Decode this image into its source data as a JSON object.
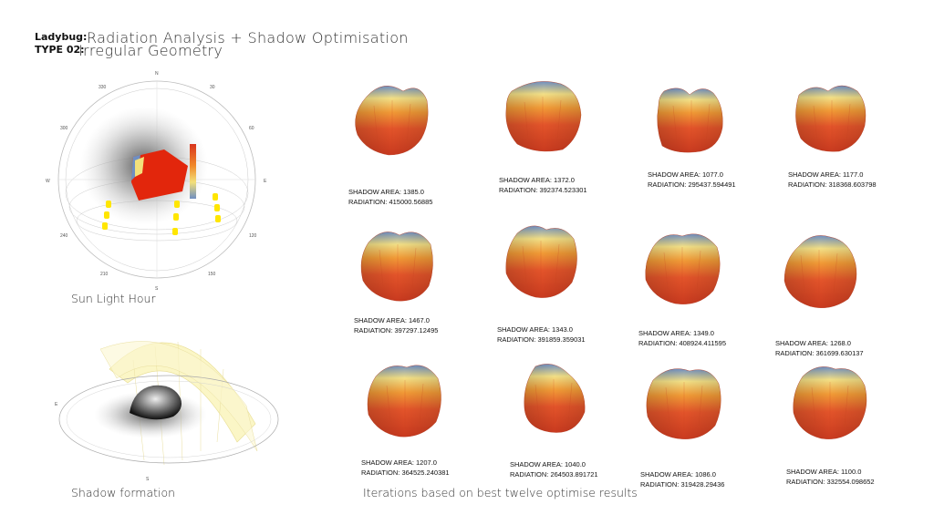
{
  "header": {
    "tool": "Ladybug:",
    "title": "Radiation Analysis + Shadow Optimisation",
    "type_label": "TYPE 02:",
    "subtitle": "Irregular Geometry"
  },
  "sun_panel": {
    "caption": "Sun Light Hour",
    "compass": {
      "n": "N",
      "s": "S",
      "e": "E",
      "w": "W"
    },
    "degree_labels": [
      "330",
      "30",
      "300",
      "60",
      "240",
      "120",
      "210",
      "150"
    ]
  },
  "shadow_panel": {
    "caption": "Shadow formation"
  },
  "iterations_caption": "Iterations based on best twelve optimise results",
  "shadow_label": "SHADOW AREA:",
  "radiation_label": "RADIATION:",
  "iterations": [
    {
      "shadow": "1385.0",
      "radiation": "415000.56885"
    },
    {
      "shadow": "1372.0",
      "radiation": "392374.523301"
    },
    {
      "shadow": "1077.0",
      "radiation": "295437.594491"
    },
    {
      "shadow": "1177.0",
      "radiation": "318368.603798"
    },
    {
      "shadow": "1467.0",
      "radiation": "397297.12495"
    },
    {
      "shadow": "1343.0",
      "radiation": "391859.359031"
    },
    {
      "shadow": "1349.0",
      "radiation": "408924.411595"
    },
    {
      "shadow": "1268.0",
      "radiation": "361699.630137"
    },
    {
      "shadow": "1207.0",
      "radiation": "364525.240381"
    },
    {
      "shadow": "1040.0",
      "radiation": "264503.891721"
    },
    {
      "shadow": "1086.0",
      "radiation": "319428.29436"
    },
    {
      "shadow": "1100.0",
      "radiation": "332554.098652"
    }
  ],
  "colors": {
    "high": "#d8341c",
    "mid": "#f08a2a",
    "low": "#f3e07a",
    "cool": "#7a95c4",
    "sun": "#ffe600"
  }
}
